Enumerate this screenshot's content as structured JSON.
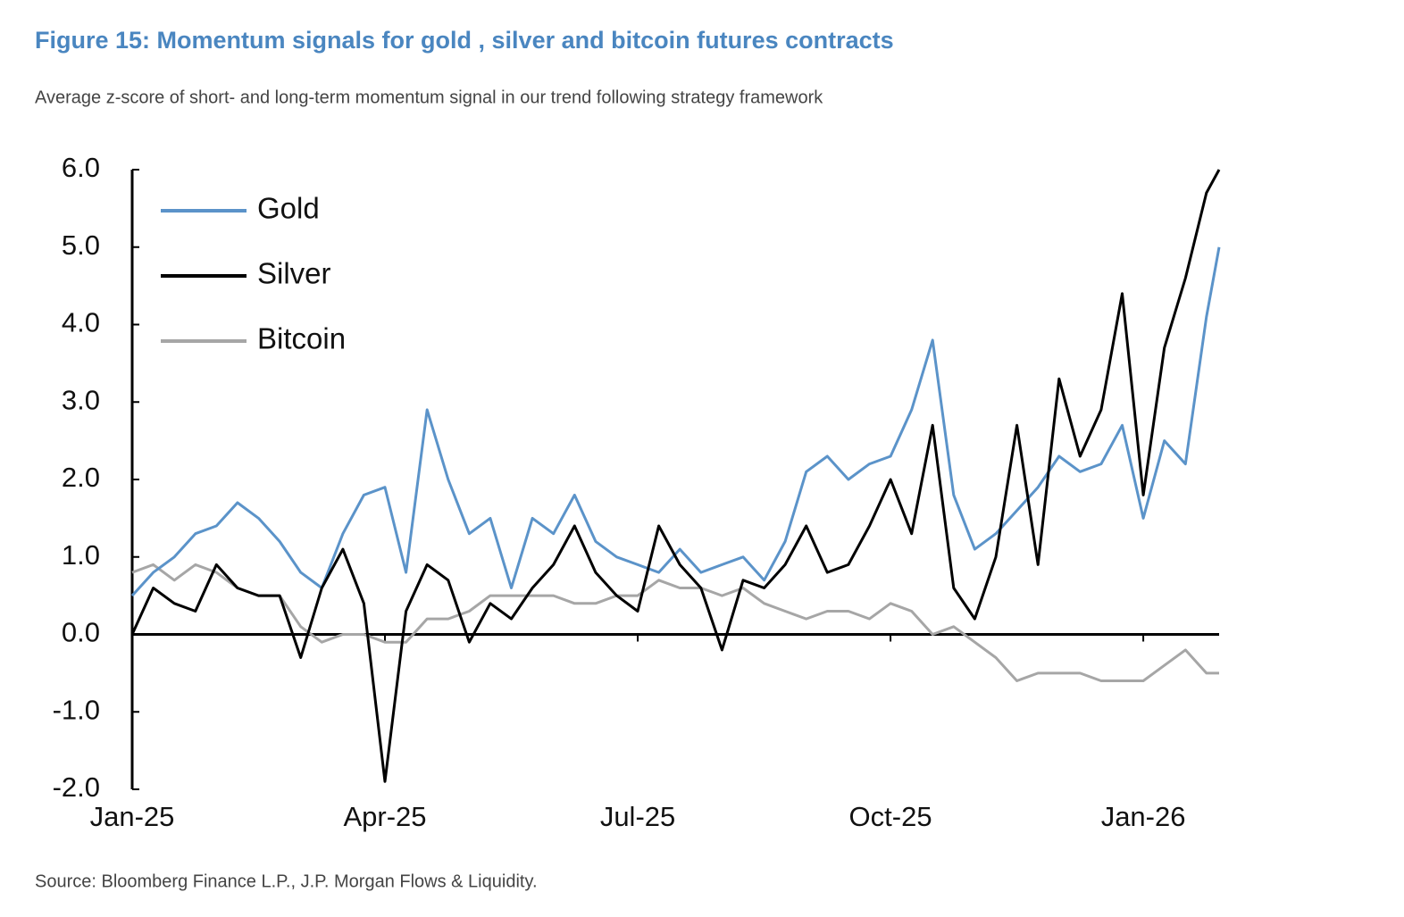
{
  "chart_data": {
    "type": "line",
    "title": "Figure 15: Momentum signals for gold , silver and bitcoin futures contracts",
    "subtitle": "Average z-score of short- and long-term momentum signal in our trend following strategy framework",
    "source": "Source: Bloomberg Finance L.P., J.P. Morgan Flows & Liquidity.",
    "x": [
      0,
      0.25,
      0.5,
      0.75,
      1,
      1.25,
      1.5,
      1.75,
      2,
      2.25,
      2.5,
      2.75,
      3,
      3.25,
      3.5,
      3.75,
      4,
      4.25,
      4.5,
      4.75,
      5,
      5.25,
      5.5,
      5.75,
      6,
      6.25,
      6.5,
      6.75,
      7,
      7.25,
      7.5,
      7.75,
      8,
      8.25,
      8.5,
      8.75,
      9,
      9.25,
      9.5,
      9.75,
      10,
      10.25,
      10.5,
      10.75,
      11,
      11.25,
      11.5,
      11.75,
      12,
      12.25,
      12.5,
      12.75,
      12.9
    ],
    "xlim": [
      0,
      12.9
    ],
    "xticks": [
      {
        "value": 0,
        "label": "Jan-25"
      },
      {
        "value": 3,
        "label": "Apr-25"
      },
      {
        "value": 6,
        "label": "Jul-25"
      },
      {
        "value": 9,
        "label": "Oct-25"
      },
      {
        "value": 12,
        "label": "Jan-26"
      }
    ],
    "ylim": [
      -2,
      6
    ],
    "yticks": [
      {
        "value": -2,
        "label": "-2.0"
      },
      {
        "value": -1,
        "label": "-1.0"
      },
      {
        "value": 0,
        "label": "0.0"
      },
      {
        "value": 1,
        "label": "1.0"
      },
      {
        "value": 2,
        "label": "2.0"
      },
      {
        "value": 3,
        "label": "3.0"
      },
      {
        "value": 4,
        "label": "4.0"
      },
      {
        "value": 5,
        "label": "5.0"
      },
      {
        "value": 6,
        "label": "6.0"
      }
    ],
    "legend": "upper-left",
    "series": [
      {
        "name": "Gold",
        "color": "#5b93c9",
        "values": [
          0.5,
          0.8,
          1.0,
          1.3,
          1.4,
          1.7,
          1.5,
          1.2,
          0.8,
          0.6,
          1.3,
          1.8,
          1.9,
          0.8,
          2.9,
          2.0,
          1.3,
          1.5,
          0.6,
          1.5,
          1.3,
          1.8,
          1.2,
          1.0,
          0.9,
          0.8,
          1.1,
          0.8,
          0.9,
          1.0,
          0.7,
          1.2,
          2.1,
          2.3,
          2.0,
          2.2,
          2.3,
          2.9,
          3.8,
          1.8,
          1.1,
          1.3,
          1.6,
          1.9,
          2.3,
          2.1,
          2.2,
          2.7,
          1.5,
          2.5,
          2.2,
          4.1,
          5.0
        ]
      },
      {
        "name": "Silver",
        "color": "#000000",
        "values": [
          0.0,
          0.6,
          0.4,
          0.3,
          0.9,
          0.6,
          0.5,
          0.5,
          -0.3,
          0.6,
          1.1,
          0.4,
          -1.9,
          0.3,
          0.9,
          0.7,
          -0.1,
          0.4,
          0.2,
          0.6,
          0.9,
          1.4,
          0.8,
          0.5,
          0.3,
          1.4,
          0.9,
          0.6,
          -0.2,
          0.7,
          0.6,
          0.9,
          1.4,
          0.8,
          0.9,
          1.4,
          2.0,
          1.3,
          2.7,
          0.6,
          0.2,
          1.0,
          2.7,
          0.9,
          3.3,
          2.3,
          2.9,
          4.4,
          1.8,
          3.7,
          4.6,
          5.7,
          6.0
        ]
      },
      {
        "name": "Bitcoin",
        "color": "#a6a6a6",
        "values": [
          0.8,
          0.9,
          0.7,
          0.9,
          0.8,
          0.6,
          0.5,
          0.5,
          0.1,
          -0.1,
          0.0,
          0.0,
          -0.1,
          -0.1,
          0.2,
          0.2,
          0.3,
          0.5,
          0.5,
          0.5,
          0.5,
          0.4,
          0.4,
          0.5,
          0.5,
          0.7,
          0.6,
          0.6,
          0.5,
          0.6,
          0.4,
          0.3,
          0.2,
          0.3,
          0.3,
          0.2,
          0.4,
          0.3,
          0.0,
          0.1,
          -0.1,
          -0.3,
          -0.6,
          -0.5,
          -0.5,
          -0.5,
          -0.6,
          -0.6,
          -0.6,
          -0.4,
          -0.2,
          -0.5,
          -0.5
        ]
      }
    ]
  }
}
